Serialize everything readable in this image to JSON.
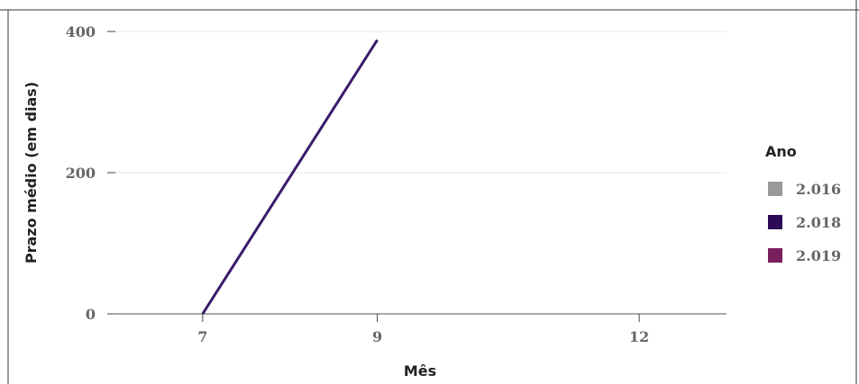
{
  "chart_data": {
    "type": "line",
    "xlabel": "Mês",
    "ylabel": "Prazo médio (em dias)",
    "x_ticks": [
      7,
      9,
      12
    ],
    "y_ticks": [
      0,
      200,
      400
    ],
    "xlim": [
      6,
      13
    ],
    "ylim": [
      0,
      400
    ],
    "grid": true,
    "legend": {
      "title": "Ano",
      "placement": "right",
      "entries": [
        {
          "label": "2.016",
          "color": "#999999"
        },
        {
          "label": "2.018",
          "color": "#2d0a55"
        },
        {
          "label": "2.019",
          "color": "#7a1f5e"
        }
      ]
    },
    "series": [
      {
        "name": "2.018",
        "color": "#3a1a6b",
        "points": [
          {
            "x": 7,
            "y": 0
          },
          {
            "x": 9,
            "y": 388
          }
        ]
      }
    ]
  }
}
